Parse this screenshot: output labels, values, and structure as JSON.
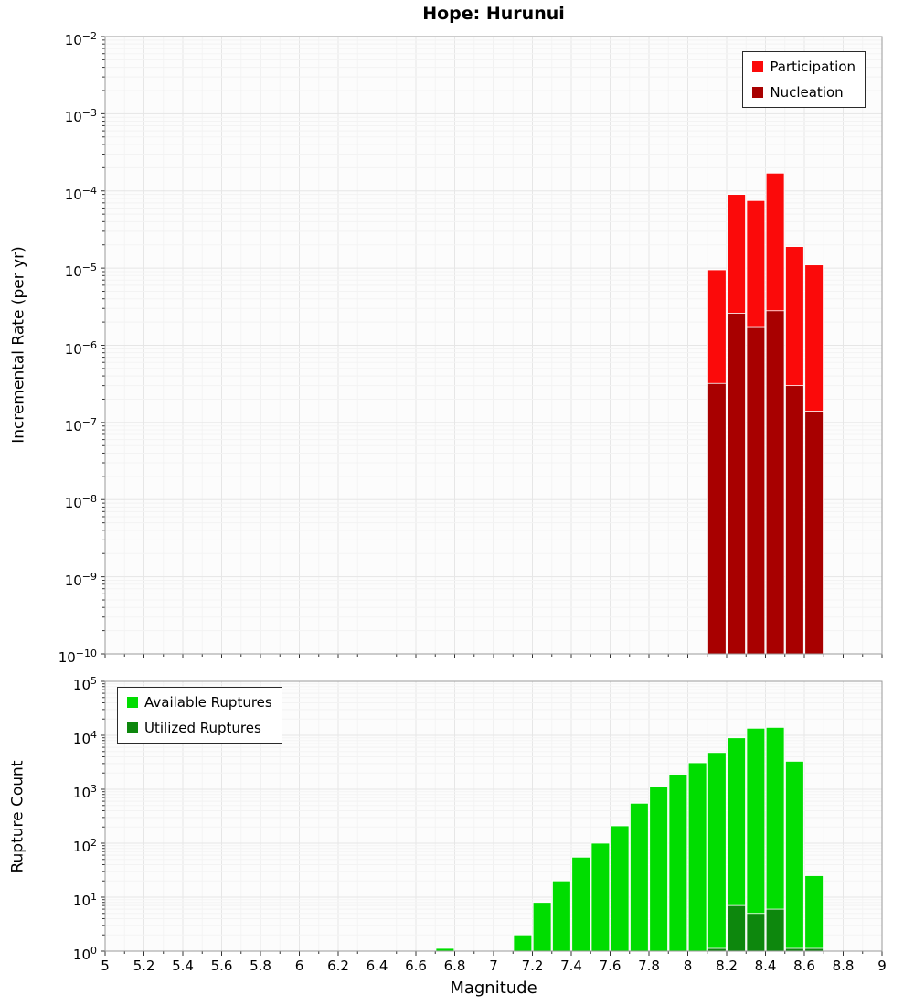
{
  "colors": {
    "participation": "#fb0a0a",
    "nucleation": "#a80000",
    "available": "#00dd00",
    "utilized": "#0d870d",
    "panel_bg": "#fcfcfc",
    "panel_border": "#9a9a9a",
    "grid_major": "#e6e6e6",
    "grid_minor": "#f3f3f3",
    "tick_color": "#333333"
  },
  "chart_data": [
    {
      "id": "rate",
      "type": "bar",
      "title": "Hope: Hurunui",
      "ylabel": "Incremental Rate (per yr)",
      "xlabel": "",
      "x_range": [
        5,
        9
      ],
      "y_log_range": [
        -10,
        -2
      ],
      "y_tick_exponents": [
        -2,
        -3,
        -4,
        -5,
        -6,
        -7,
        -8,
        -9,
        -10
      ],
      "bin_width": 0.1,
      "grid": true,
      "legend_position": "top-right",
      "series": [
        {
          "name": "Participation",
          "color_key": "participation",
          "bins": [
            8.1,
            8.2,
            8.3,
            8.4,
            8.5,
            8.6
          ],
          "values": [
            9.5e-06,
            9e-05,
            7.5e-05,
            0.00017,
            1.9e-05,
            1.1e-05
          ]
        },
        {
          "name": "Nucleation",
          "color_key": "nucleation",
          "bins": [
            8.1,
            8.2,
            8.3,
            8.4,
            8.5,
            8.6
          ],
          "values": [
            3.2e-07,
            2.6e-06,
            1.7e-06,
            2.8e-06,
            3e-07,
            1.4e-07
          ]
        }
      ]
    },
    {
      "id": "count",
      "type": "bar",
      "title": "",
      "ylabel": "Rupture Count",
      "xlabel": "Magnitude",
      "x_range": [
        5,
        9
      ],
      "y_log_range": [
        0,
        5
      ],
      "y_tick_exponents": [
        5,
        4,
        3,
        2,
        1,
        0
      ],
      "x_tick_labels": [
        "5",
        "5.2",
        "5.4",
        "5.6",
        "5.8",
        "6",
        "6.2",
        "6.4",
        "6.6",
        "6.8",
        "7",
        "7.2",
        "7.4",
        "7.6",
        "7.8",
        "8",
        "8.2",
        "8.4",
        "8.6",
        "8.8",
        "9"
      ],
      "bin_width": 0.1,
      "grid": true,
      "legend_position": "top-left",
      "series": [
        {
          "name": "Available Ruptures",
          "color_key": "available",
          "bins": [
            6.7,
            7.1,
            7.2,
            7.3,
            7.4,
            7.5,
            7.6,
            7.7,
            7.8,
            7.9,
            8.0,
            8.1,
            8.2,
            8.3,
            8.4,
            8.5,
            8.6
          ],
          "values": [
            1,
            2,
            8,
            20,
            55,
            100,
            210,
            550,
            1100,
            1900,
            3100,
            4800,
            9000,
            13500,
            14000,
            3300,
            25
          ]
        },
        {
          "name": "Utilized Ruptures",
          "color_key": "utilized",
          "bins": [
            8.1,
            8.2,
            8.3,
            8.4,
            8.5,
            8.6
          ],
          "values": [
            1,
            7,
            5,
            6,
            1,
            1
          ]
        }
      ]
    }
  ]
}
